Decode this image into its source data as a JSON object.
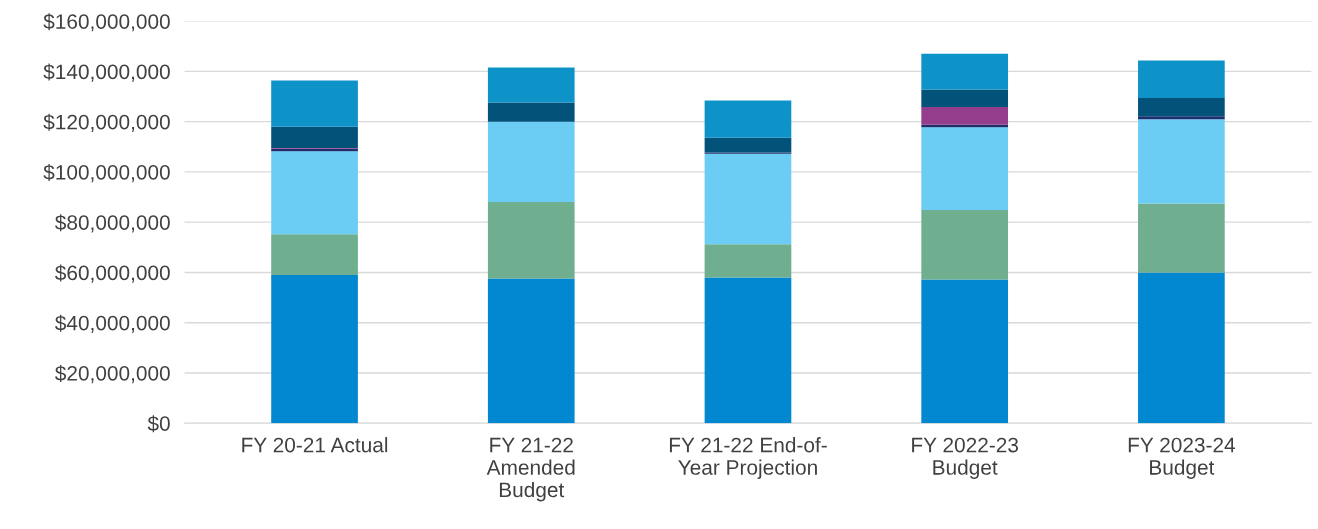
{
  "chart_data": {
    "type": "bar",
    "stacked": true,
    "categories": [
      "FY 20-21 Actual",
      "FY 21-22\nAmended\nBudget",
      "FY 21-22 End-of-\nYear Projection",
      "FY 2022-23\nBudget",
      "FY 2023-24\nBudget"
    ],
    "series": [
      {
        "color": "#0288d1",
        "values": [
          59000000,
          57600000,
          58000000,
          57200000,
          60000000
        ]
      },
      {
        "color": "#6fae8e",
        "values": [
          16200000,
          30400000,
          13200000,
          27600000,
          27400000
        ]
      },
      {
        "color": "#6ccdf4",
        "values": [
          33000000,
          32000000,
          36000000,
          33000000,
          33600000
        ]
      },
      {
        "color": "#1b2f6e",
        "values": [
          1000000,
          0,
          500000,
          1000000,
          1200000
        ]
      },
      {
        "color": "#943d8d",
        "values": [
          300000,
          0,
          0,
          7000000,
          0
        ]
      },
      {
        "color": "#03527a",
        "values": [
          8500000,
          7600000,
          5900000,
          7000000,
          7200000
        ]
      },
      {
        "color": "#0e93c8",
        "values": [
          18400000,
          14000000,
          14800000,
          14200000,
          14900000
        ]
      }
    ],
    "ylim": [
      0,
      160000000
    ],
    "yticks": [
      {
        "value": 0,
        "label": "$0"
      },
      {
        "value": 20000000,
        "label": "$20,000,000"
      },
      {
        "value": 40000000,
        "label": "$40,000,000"
      },
      {
        "value": 60000000,
        "label": "$60,000,000"
      },
      {
        "value": 80000000,
        "label": "$80,000,000"
      },
      {
        "value": 100000000,
        "label": "$100,000,000"
      },
      {
        "value": 120000000,
        "label": "$120,000,000"
      },
      {
        "value": 140000000,
        "label": "$140,000,000"
      },
      {
        "value": 160000000,
        "label": "$160,000,000"
      }
    ],
    "grid": "y"
  }
}
